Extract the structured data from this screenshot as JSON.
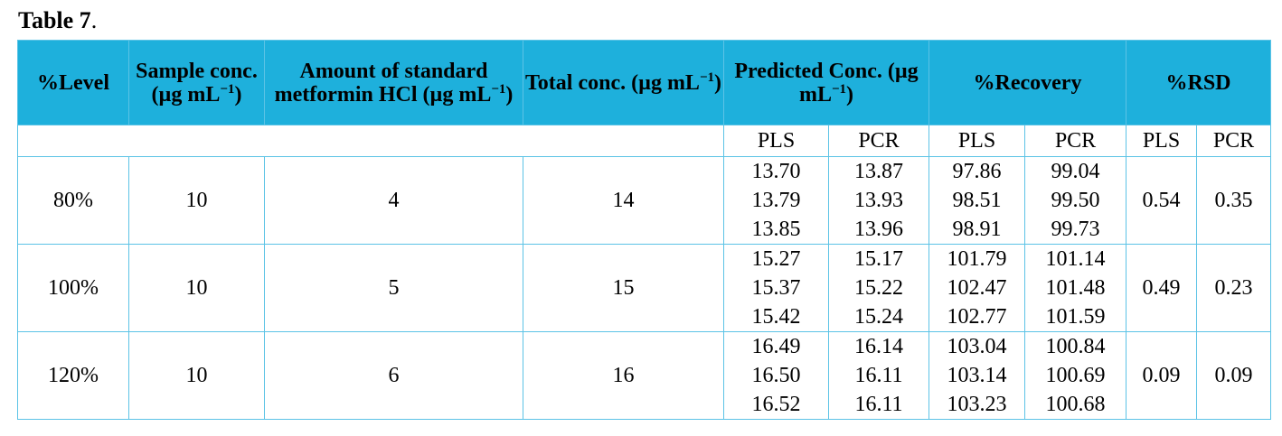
{
  "title": {
    "label": "Table 7",
    "punct": "."
  },
  "table": {
    "header": [
      {
        "pre": "%Level"
      },
      {
        "pre": "Sample conc. (µg mL",
        "sup": "−1",
        "post": ")"
      },
      {
        "pre": "Amount of standard metformin HCl (µg mL",
        "sup": "−1",
        "post": ")"
      },
      {
        "pre": "Total conc. (µg mL",
        "sup": "−1",
        "post": ")"
      },
      {
        "pre": "Predicted Conc. (µg mL",
        "sup": "−1",
        "post": ")"
      },
      {
        "pre": "%Recovery"
      },
      {
        "pre": "%RSD"
      }
    ],
    "subheader": [
      "PLS",
      "PCR",
      "PLS",
      "PCR",
      "PLS",
      "PCR"
    ],
    "groups": [
      {
        "level": "80%",
        "sample": "10",
        "amount": "4",
        "total": "14",
        "rows": [
          [
            "13.70",
            "13.87",
            "97.86",
            "99.04"
          ],
          [
            "13.79",
            "13.93",
            "98.51",
            "99.50"
          ],
          [
            "13.85",
            "13.96",
            "98.91",
            "99.73"
          ]
        ],
        "rsd": [
          "0.54",
          "0.35"
        ]
      },
      {
        "level": "100%",
        "sample": "10",
        "amount": "5",
        "total": "15",
        "rows": [
          [
            "15.27",
            "15.17",
            "101.79",
            "101.14"
          ],
          [
            "15.37",
            "15.22",
            "102.47",
            "101.48"
          ],
          [
            "15.42",
            "15.24",
            "102.77",
            "101.59"
          ]
        ],
        "rsd": [
          "0.49",
          "0.23"
        ]
      },
      {
        "level": "120%",
        "sample": "10",
        "amount": "6",
        "total": "16",
        "rows": [
          [
            "16.49",
            "16.14",
            "103.04",
            "100.84"
          ],
          [
            "16.50",
            "16.11",
            "103.14",
            "100.69"
          ],
          [
            "16.52",
            "16.11",
            "103.23",
            "100.68"
          ]
        ],
        "rsd": [
          "0.09",
          "0.09"
        ]
      }
    ]
  }
}
